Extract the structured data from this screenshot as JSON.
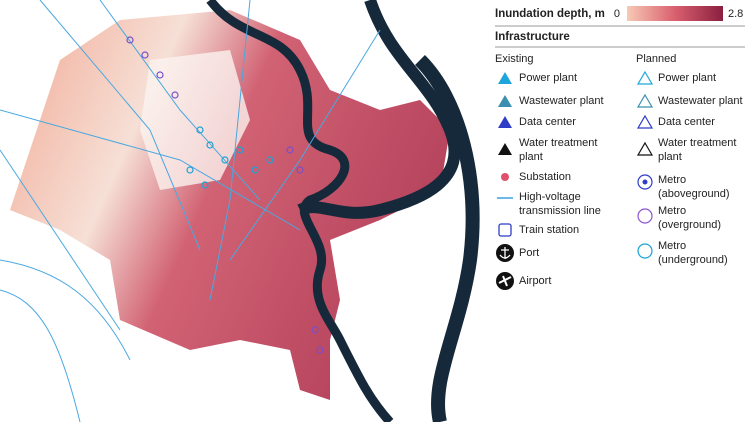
{
  "legend": {
    "title": "Inundation depth, m",
    "min": 0,
    "max": 2.8
  },
  "infrastructure": {
    "title": "Infrastructure"
  },
  "existing": {
    "title": "Existing",
    "items": [
      {
        "label": [
          "Power plant"
        ]
      },
      {
        "label": [
          "Wastewater plant"
        ]
      },
      {
        "label": [
          "Data center"
        ]
      },
      {
        "label": [
          "Water treatment",
          "plant"
        ]
      },
      {
        "label": [
          "Substation"
        ]
      },
      {
        "label": [
          "High-voltage",
          "transmission line"
        ]
      },
      {
        "label": [
          "Train station"
        ]
      },
      {
        "label": [
          "Port"
        ]
      },
      {
        "label": [
          "Airport"
        ]
      }
    ]
  },
  "planned": {
    "title": "Planned",
    "items": [
      {
        "label": [
          "Power plant"
        ]
      },
      {
        "label": [
          "Wastewater plant"
        ]
      },
      {
        "label": [
          "Data center"
        ]
      },
      {
        "label": [
          "Water treatment",
          "plant"
        ]
      },
      {
        "label": [
          "Metro",
          "(aboveground)"
        ]
      },
      {
        "label": [
          "Metro",
          "(overground)"
        ]
      },
      {
        "label": [
          "Metro",
          "(underground)"
        ]
      }
    ]
  }
}
